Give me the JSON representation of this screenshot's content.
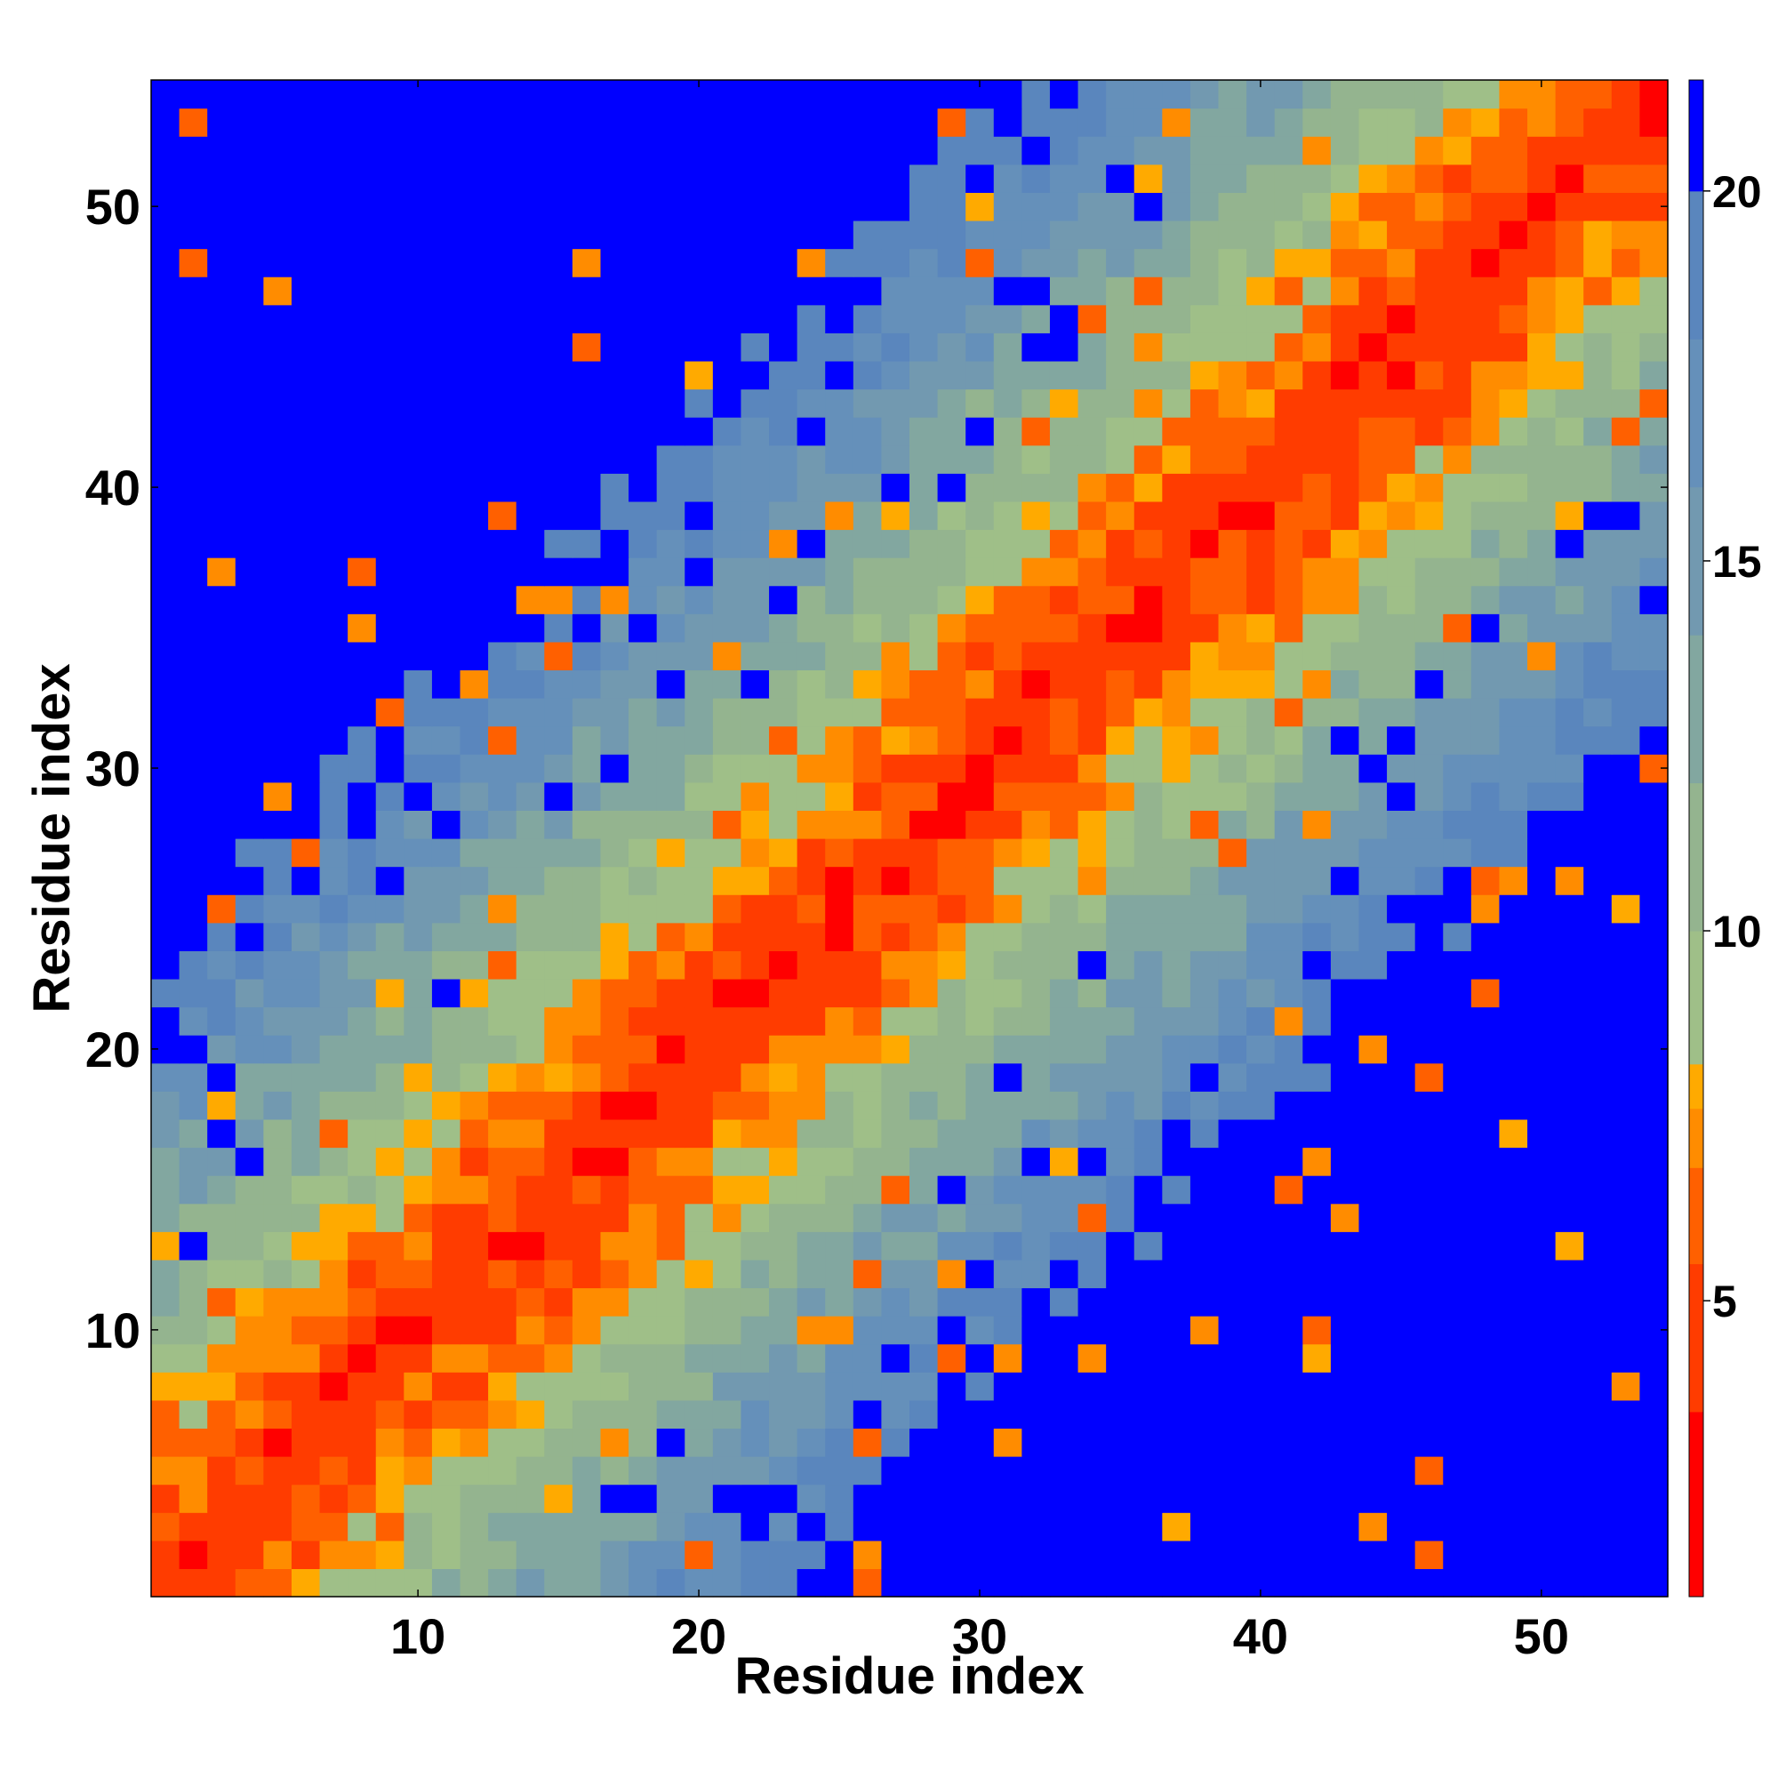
{
  "chart_data": {
    "type": "heatmap",
    "xlabel": "Residue index",
    "ylabel": "Residue index",
    "x_range": [
      1,
      54
    ],
    "y_range": [
      1,
      54
    ],
    "x_ticks": [
      "10",
      "20",
      "30",
      "40",
      "50"
    ],
    "y_ticks": [
      "10",
      "20",
      "30",
      "40",
      "50"
    ],
    "colorbar": {
      "range": [
        1,
        21.5
      ],
      "tick_labels": [
        "5",
        "10",
        "15",
        "20"
      ],
      "bands": [
        {
          "from": 1.0,
          "to": 3.5,
          "color": "#ff0000"
        },
        {
          "from": 3.5,
          "to": 5.5,
          "color": "#ff3c00"
        },
        {
          "from": 5.5,
          "to": 6.8,
          "color": "#ff6000"
        },
        {
          "from": 6.8,
          "to": 7.6,
          "color": "#ff8c00"
        },
        {
          "from": 7.6,
          "to": 8.2,
          "color": "#ffaa00"
        },
        {
          "from": 8.2,
          "to": 10.0,
          "color": "#9fbf88"
        },
        {
          "from": 10.0,
          "to": 12.0,
          "color": "#94b48f"
        },
        {
          "from": 12.0,
          "to": 14.0,
          "color": "#82a7a0"
        },
        {
          "from": 14.0,
          "to": 16.0,
          "color": "#7299b0"
        },
        {
          "from": 16.0,
          "to": 18.0,
          "color": "#6590ba"
        },
        {
          "from": 18.0,
          "to": 20.0,
          "color": "#5a86bd"
        },
        {
          "from": 20.0,
          "to": 21.5,
          "color": "#0000ff"
        }
      ]
    },
    "description_of_values": "Pairwise residue distance matrix (54 x 54), symmetric-like with small diagonal values"
  }
}
